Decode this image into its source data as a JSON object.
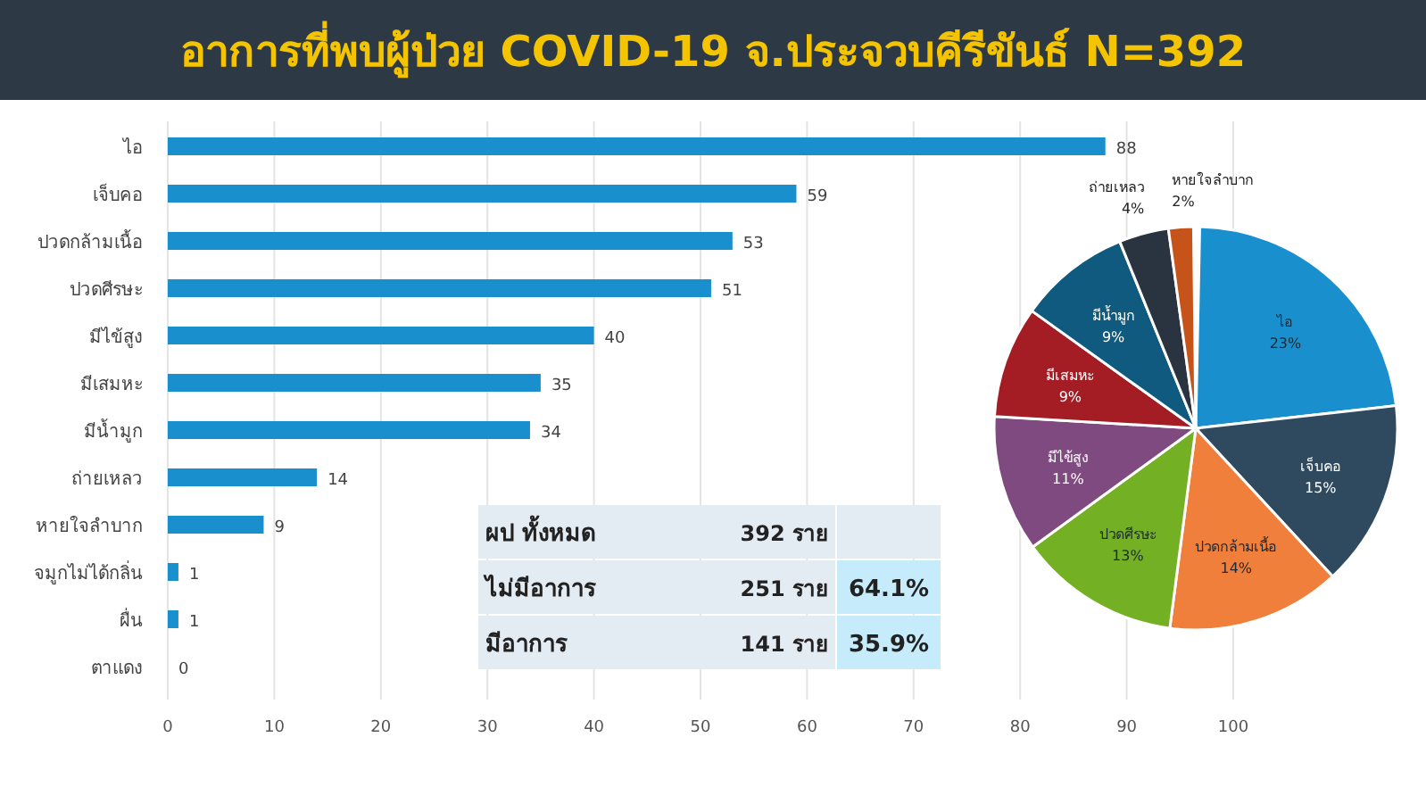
{
  "chart_data": [
    {
      "type": "bar",
      "orientation": "horizontal",
      "title": "อาการที่พบผู้ป่วย COVID-19 จ.ประจวบคีรีขันธ์ N=392",
      "categories": [
        "ไอ",
        "เจ็บคอ",
        "ปวดกล้ามเนื้อ",
        "ปวดศีรษะ",
        "มีไข้สูง",
        "มีเสมหะ",
        "มีน้ำมูก",
        "ถ่ายเหลว",
        "หายใจลำบาก",
        "จมูกไม่ได้กลิ่น",
        "ผื่น",
        "ตาแดง"
      ],
      "values": [
        88,
        59,
        53,
        51,
        40,
        35,
        34,
        14,
        9,
        1,
        1,
        0
      ],
      "color": "#1a8fce",
      "xlim": [
        0,
        100
      ],
      "xticks": [
        0,
        10,
        20,
        30,
        40,
        50,
        60,
        70,
        80,
        90,
        100
      ],
      "grid": "x",
      "data_labels": true
    },
    {
      "type": "pie",
      "categories": [
        "ไอ",
        "เจ็บคอ",
        "ปวดกล้ามเนื้อ",
        "ปวดศีรษะ",
        "มีไข้สูง",
        "มีเสมหะ",
        "มีน้ำมูก",
        "ถ่ายเหลว",
        "หายใจลำบาก"
      ],
      "values": [
        23,
        15,
        14,
        13,
        11,
        9,
        9,
        4,
        2
      ],
      "colors": [
        "#1a8fce",
        "#2f4a5e",
        "#f07f3c",
        "#74b024",
        "#7f4a7f",
        "#a51d24",
        "#0f5a7e",
        "#2a3440",
        "#c5531a"
      ],
      "value_labels": [
        "23%",
        "15%",
        "14%",
        "13%",
        "11%",
        "9%",
        "9%",
        "4%",
        "2%"
      ]
    },
    {
      "type": "other",
      "annotations": [
        "ผป ทั้งหมด",
        "392 ราย",
        "ไม่มีอาการ",
        "251 ราย",
        "64.1%",
        "มีอาการ",
        "141 ราย",
        "35.9%"
      ]
    }
  ]
}
